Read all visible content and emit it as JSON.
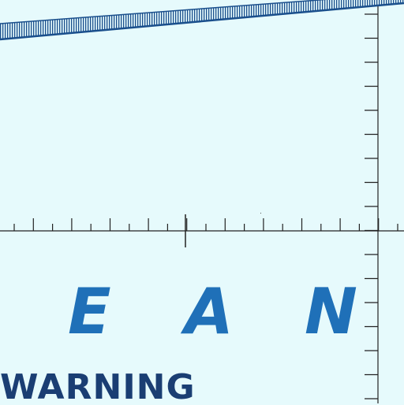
{
  "map": {
    "ocean_label_letters": [
      "E",
      "A",
      "N"
    ],
    "warning_text": "WARNING",
    "colors": {
      "water": "#e6fafc",
      "label_blue": "#1f70b8",
      "warning_navy": "#1a3e73",
      "graticule": "#222222",
      "boundary_line": "#1a4f8c"
    },
    "features": {
      "boundary_hatched_line": "diagonal-hatched-boundary",
      "graticule_meridian": "vertical-graticule-with-ticks",
      "graticule_parallel": "horizontal-graticule-with-ticks"
    }
  }
}
